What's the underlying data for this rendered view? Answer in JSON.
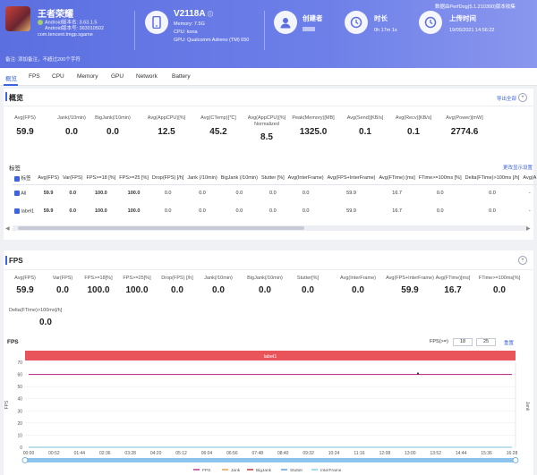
{
  "app": {
    "name": "王者荣耀",
    "android_version_label": "Android版本名: 3.63.1.5",
    "android_code_label": "Android版本号: 363010502",
    "package": "com.tencent.tmgp.sgame"
  },
  "device": {
    "model": "V2118A",
    "memory": "Memory: 7.5G",
    "cpu": "CPU: kona",
    "gpu": "GPU: Qualcomm Adreno (TM) 650"
  },
  "creator": {
    "label": "创建者",
    "value": ""
  },
  "duration": {
    "label": "时长",
    "value": "0h 17m 1s"
  },
  "upload": {
    "label": "上传时间",
    "value": "19/05/2021 14:56:22"
  },
  "perfdog_note": "数据由PerfDog(5.1.210300)版本收集",
  "note": "备注:  添加备注，不超过200个字符",
  "tabs": [
    "概览",
    "FPS",
    "CPU",
    "Memory",
    "GPU",
    "Network",
    "Battery"
  ],
  "overview": {
    "title": "概览",
    "export_label": "导出全部",
    "metrics": [
      {
        "label": "Avg(FPS)",
        "value": "59.9"
      },
      {
        "label": "Jank(/10min)",
        "value": "0.0"
      },
      {
        "label": "BigJank(/10min)",
        "value": "0.0"
      },
      {
        "label": "Avg(AppCPU)[%]",
        "value": "12.5"
      },
      {
        "label": "Avg(CTemp)[℃]",
        "value": "45.2"
      },
      {
        "label": "Avg(AppCPU)[%] Normalized",
        "value": "8.5"
      },
      {
        "label": "Peak(Memory)[MB]",
        "value": "1325.0"
      },
      {
        "label": "Avg(Send)[KB/s]",
        "value": "0.1"
      },
      {
        "label": "Avg(Recv)[KB/s]",
        "value": "0.1"
      },
      {
        "label": "Avg(Power)[mW]",
        "value": "2774.6"
      }
    ]
  },
  "label_section": {
    "title": "标签",
    "settings_link": "更改显示设置",
    "headers": [
      "标签",
      "Avg(FPS)",
      "Var(FPS)",
      "FPS>=18 [%]",
      "FPS>=25 [%]",
      "Drop(FPS) [/h]",
      "Jank (/10min)",
      "BigJank (/10min)",
      "Stutter [%]",
      "Avg(InterFrame)",
      "Avg(FPS+InterFrame)",
      "Avg(FTime) [ms]",
      "FTime>=100ms [%]",
      "Delta(FTime)>100ms [/h]",
      "Avg(A"
    ],
    "rows": [
      {
        "name": "All",
        "values": [
          "59.9",
          "0.0",
          "100.0",
          "100.0",
          "0.0",
          "0.0",
          "0.0",
          "0.0",
          "0.0",
          "59.9",
          "16.7",
          "0.0",
          "0.0",
          "-"
        ]
      },
      {
        "name": "label1",
        "values": [
          "59.9",
          "0.0",
          "100.0",
          "100.0",
          "0.0",
          "0.0",
          "0.0",
          "0.0",
          "0.0",
          "59.9",
          "16.7",
          "0.0",
          "0.0",
          "-"
        ]
      }
    ]
  },
  "fps_section": {
    "title": "FPS",
    "metrics": [
      {
        "label": "Avg(FPS)",
        "value": "59.9"
      },
      {
        "label": "Var(FPS)",
        "value": "0.0"
      },
      {
        "label": "FPS>=18[%]",
        "value": "100.0"
      },
      {
        "label": "FPS>=25[%]",
        "value": "100.0"
      },
      {
        "label": "Drop(FPS) [/h]",
        "value": "0.0"
      },
      {
        "label": "Jank(/10min)",
        "value": "0.0"
      },
      {
        "label": "BigJank(/10min)",
        "value": "0.0"
      },
      {
        "label": "Stutter[%]",
        "value": "0.0"
      },
      {
        "label": "Avg(InterFrame)",
        "value": "0.0"
      },
      {
        "label": "Avg(FPS+InterFrame)",
        "value": "59.9"
      },
      {
        "label": "Avg(FTime)[ms]",
        "value": "16.7"
      },
      {
        "label": "FTime>=100ms[%]",
        "value": "0.0"
      }
    ],
    "delta_label": "Delta(FTime)>100ms[/h]",
    "delta_value": "0.0",
    "fps_threshold_label": "FPS(>=)",
    "threshold_1": "18",
    "threshold_2": "25",
    "threshold_link": "重置"
  },
  "chart_data": {
    "type": "line",
    "title": "FPS",
    "label_band": "label1",
    "ylabel": "FPS",
    "y2label": "Jank",
    "ylim": [
      0,
      70
    ],
    "yticks": [
      0,
      10,
      20,
      30,
      40,
      50,
      60,
      70
    ],
    "x": [
      "00:00",
      "00:52",
      "01:44",
      "02:36",
      "03:28",
      "04:20",
      "05:12",
      "06:04",
      "06:56",
      "07:48",
      "08:40",
      "09:32",
      "10:24",
      "11:16",
      "12:08",
      "13:00",
      "13:52",
      "14:44",
      "15:36",
      "16:28"
    ],
    "series": [
      {
        "name": "FPS",
        "color": "#c0398f",
        "values": [
          60,
          60,
          60,
          60,
          60,
          60,
          60,
          60,
          60,
          60,
          60,
          60,
          60,
          60,
          60,
          60,
          60,
          60,
          60,
          60
        ]
      },
      {
        "name": "Jank",
        "color": "#e8a04a",
        "values": [
          0,
          0,
          0,
          0,
          0,
          0,
          0,
          0,
          0,
          0,
          0,
          0,
          0,
          0,
          0,
          0,
          0,
          0,
          0,
          0
        ]
      },
      {
        "name": "BigJank",
        "color": "#b83a3a",
        "values": [
          0,
          0,
          0,
          0,
          0,
          0,
          0,
          0,
          0,
          0,
          0,
          0,
          0,
          0,
          0,
          0,
          0,
          0,
          0,
          0
        ]
      },
      {
        "name": "Stutter",
        "color": "#5aa0e0",
        "values": [
          0,
          0,
          0,
          0,
          0,
          0,
          0,
          0,
          0,
          0,
          0,
          0,
          0,
          0,
          0,
          0,
          0,
          0,
          0,
          0
        ]
      },
      {
        "name": "InterFrame",
        "color": "#7fd3e6",
        "values": [
          0,
          0,
          0,
          0,
          0,
          0,
          0,
          0,
          0,
          0,
          0,
          0,
          0,
          0,
          0,
          0,
          0,
          0,
          0,
          0
        ]
      }
    ],
    "grid": true,
    "legend": "bottom"
  },
  "colors": {
    "accent": "#3d63dd",
    "header": "#6073e3",
    "label_band": "#e9535a"
  }
}
